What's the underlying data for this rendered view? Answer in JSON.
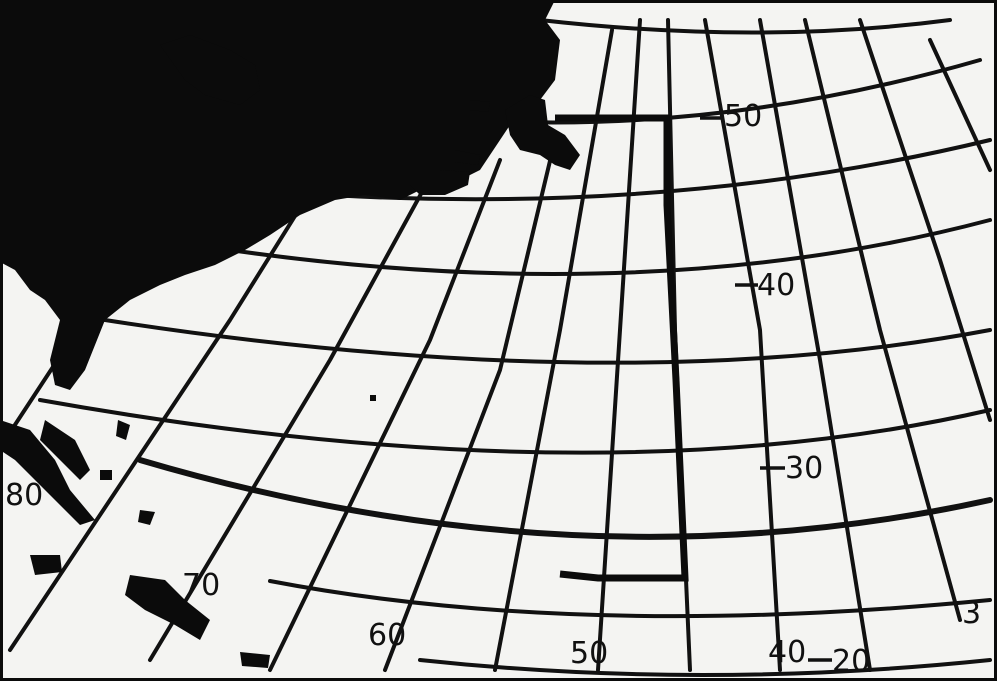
{
  "map": {
    "latitude_labels": {
      "lat_50": "50",
      "lat_40": "40",
      "lat_30": "30",
      "lat_20": "20"
    },
    "longitude_labels": {
      "lon_80": "80",
      "lon_70": "70",
      "lon_60": "60",
      "lon_50": "50",
      "lon_40": "40",
      "lon_30": "3"
    },
    "colors": {
      "land": "#0b0b0b",
      "ocean": "#f4f4f2",
      "grid": "#111111"
    }
  }
}
